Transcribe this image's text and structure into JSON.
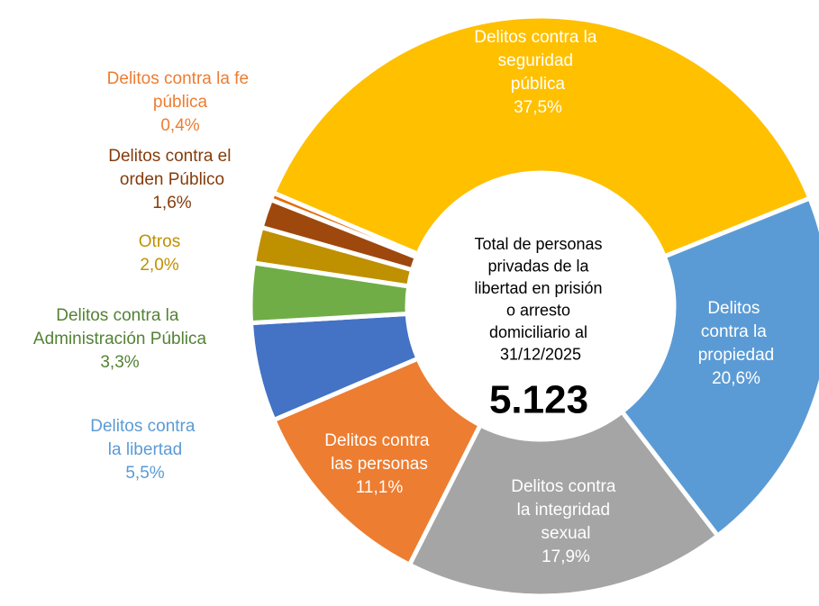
{
  "chart_data": {
    "type": "donut",
    "center_text": "Total de personas privadas de la libertad  en prisión o arresto domiciliario al 31/12/2025",
    "center_value": "5.123",
    "categories": [
      "Delitos contra la seguridad pública",
      "Delitos contra la propiedad",
      "Delitos contra la integridad sexual",
      "Delitos contra las personas",
      "Delitos contra la libertad",
      "Delitos contra la Administración Pública",
      "Otros",
      "Delitos contra el orden Público",
      "Delitos contra la fe pública"
    ],
    "values": [
      37.5,
      20.6,
      17.9,
      11.1,
      5.5,
      3.3,
      2.0,
      1.6,
      0.4
    ],
    "value_labels": [
      "37,5%",
      "20,6%",
      "17,9%",
      "11,1%",
      "5,5%",
      "3,3%",
      "2,0%",
      "1,6%",
      "0,4%"
    ],
    "colors": [
      "#FFC000",
      "#5B9BD5",
      "#A5A5A5",
      "#ED7D31",
      "#4472C4",
      "#70AD47",
      "#BF9000",
      "#9E480E",
      "#E46C0A"
    ]
  }
}
